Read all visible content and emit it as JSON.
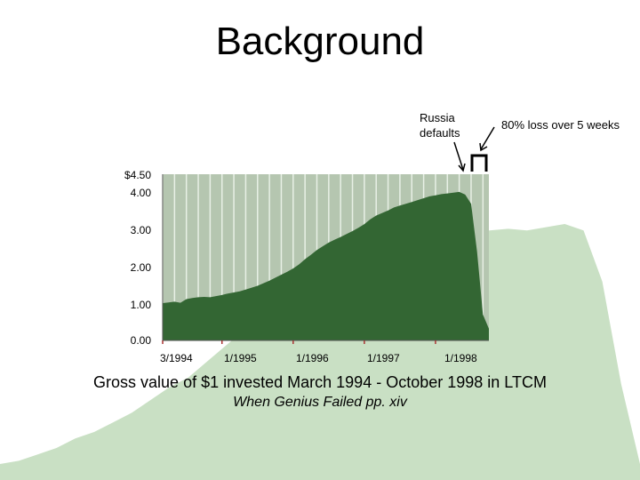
{
  "slide": {
    "title": "Background",
    "caption_line1": "Gross value of $1 invested March 1994 - October 1998 in LTCM",
    "caption_line2": "When Genius Failed pp. xiv"
  },
  "annotations": {
    "russia": [
      "Russia",
      "defaults"
    ],
    "loss": "80% loss over 5 weeks"
  },
  "colors": {
    "area": "#336633",
    "plot_background": "#b5c6b0",
    "gridline": "#e8f0e6",
    "background_mountain": "#c9e0c4"
  },
  "chart_data": {
    "type": "area",
    "title": "",
    "xlabel": "",
    "ylabel": "",
    "ylim": [
      0,
      4.5
    ],
    "y_ticks": [
      "0.00",
      "1.00",
      "2.00",
      "3.00",
      "4.00",
      "$4.50"
    ],
    "x_ticks": [
      "3/1994",
      "1/1995",
      "1/1996",
      "1/1997",
      "1/1998"
    ],
    "x": [
      "1994-03",
      "1994-04",
      "1994-05",
      "1994-06",
      "1994-07",
      "1994-08",
      "1994-09",
      "1994-10",
      "1994-11",
      "1994-12",
      "1995-01",
      "1995-02",
      "1995-03",
      "1995-04",
      "1995-05",
      "1995-06",
      "1995-07",
      "1995-08",
      "1995-09",
      "1995-10",
      "1995-11",
      "1995-12",
      "1996-01",
      "1996-02",
      "1996-03",
      "1996-04",
      "1996-05",
      "1996-06",
      "1996-07",
      "1996-08",
      "1996-09",
      "1996-10",
      "1996-11",
      "1996-12",
      "1997-01",
      "1997-02",
      "1997-03",
      "1997-04",
      "1997-05",
      "1997-06",
      "1997-07",
      "1997-08",
      "1997-09",
      "1997-10",
      "1997-11",
      "1997-12",
      "1998-01",
      "1998-02",
      "1998-03",
      "1998-04",
      "1998-05",
      "1998-06",
      "1998-07",
      "1998-08",
      "1998-09",
      "1998-10"
    ],
    "series": [
      {
        "values": [
          1.01,
          1.03,
          1.05,
          1.02,
          1.12,
          1.15,
          1.17,
          1.18,
          1.17,
          1.2,
          1.23,
          1.27,
          1.3,
          1.33,
          1.38,
          1.43,
          1.48,
          1.55,
          1.62,
          1.7,
          1.78,
          1.86,
          1.95,
          2.06,
          2.2,
          2.32,
          2.45,
          2.55,
          2.65,
          2.73,
          2.8,
          2.88,
          2.96,
          3.05,
          3.15,
          3.28,
          3.38,
          3.45,
          3.52,
          3.6,
          3.65,
          3.7,
          3.75,
          3.8,
          3.85,
          3.9,
          3.93,
          3.96,
          3.98,
          4.0,
          4.02,
          3.95,
          3.7,
          2.4,
          0.7,
          0.32
        ]
      }
    ]
  },
  "background_mountain": {
    "values": [
      0.05,
      0.06,
      0.08,
      0.1,
      0.13,
      0.15,
      0.18,
      0.21,
      0.25,
      0.29,
      0.32,
      0.37,
      0.42,
      0.47,
      0.52,
      0.56,
      0.6,
      0.64,
      0.67,
      0.7,
      0.72,
      0.73,
      0.72,
      0.74,
      0.76,
      0.77,
      0.78,
      0.785,
      0.78,
      0.79,
      0.8,
      0.78,
      0.62,
      0.3,
      0.05
    ]
  }
}
